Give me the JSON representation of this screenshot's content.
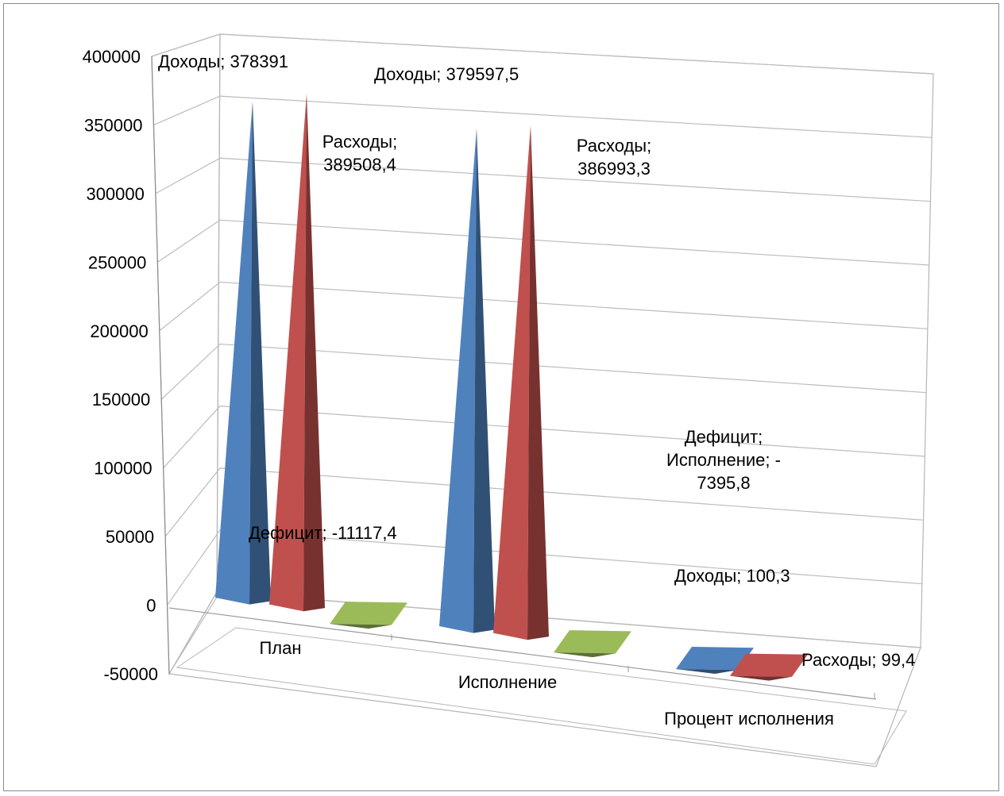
{
  "chart_data": {
    "type": "bar",
    "shape": "pyramid-3d",
    "categories": [
      "План",
      "Исполнение",
      "Процент исполнения"
    ],
    "series": [
      {
        "name": "Доходы",
        "values": [
          378391,
          379597.5,
          100.3
        ],
        "color": "#4f81bd"
      },
      {
        "name": "Расходы",
        "values": [
          389508.4,
          386993.3,
          99.4
        ],
        "color": "#c0504d"
      },
      {
        "name": "Дефицит",
        "values": [
          -11117.4,
          -7395.8,
          null
        ],
        "color": "#9bbb59"
      }
    ],
    "y_ticks": [
      "400000",
      "350000",
      "300000",
      "250000",
      "200000",
      "150000",
      "100000",
      "50000",
      "0",
      "-50000"
    ],
    "ylim": [
      -50000,
      400000
    ],
    "grid": true,
    "legend": "none",
    "data_labels": [
      {
        "lines": [
          "Доходы; 378391"
        ]
      },
      {
        "lines": [
          "Расходы;",
          "389508,4"
        ]
      },
      {
        "lines": [
          "Дефицит; -11117,4"
        ]
      },
      {
        "lines": [
          "Доходы; 379597,5"
        ]
      },
      {
        "lines": [
          "Расходы;",
          "386993,3"
        ]
      },
      {
        "lines": [
          "Дефицит;",
          "Исполнение; -",
          "7395,8"
        ]
      },
      {
        "lines": [
          "Доходы; 100,3"
        ]
      },
      {
        "lines": [
          "Расходы; 99,4"
        ]
      }
    ]
  }
}
